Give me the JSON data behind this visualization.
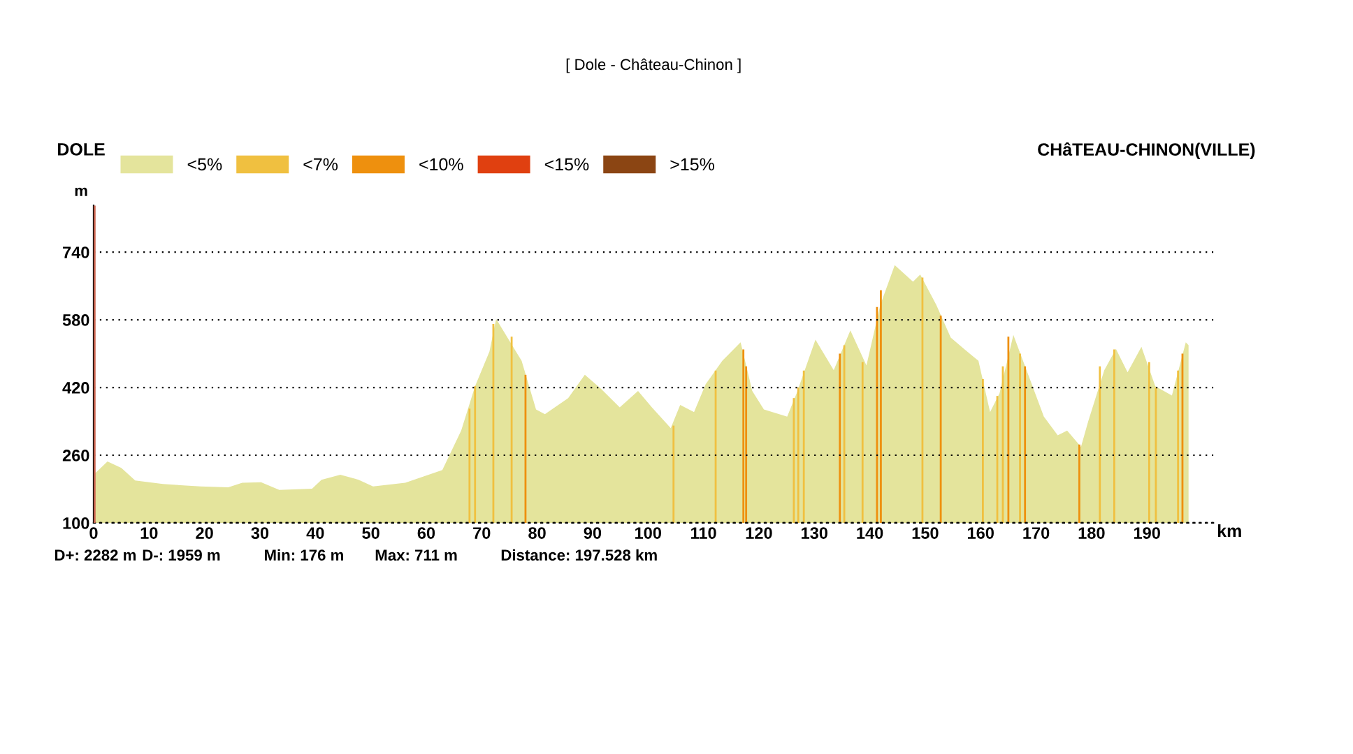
{
  "chart_data": {
    "type": "area",
    "title": "[ Dole - Château-Chinon ]",
    "xlabel": "km",
    "ylabel": "m",
    "annotations": [
      "DOLE",
      "CHâTEAU-CHINON(VILLE)",
      "D+: 2282 m",
      "D-: 1959 m",
      "Min: 176 m",
      "Max: 711 m",
      "Distance: 197.528 km"
    ],
    "series": [
      {
        "name": "<5%",
        "color": "#e4e49c",
        "x": [
          0,
          2.5,
          5,
          7.5,
          12.5,
          19.3,
          24.3,
          26.8,
          30.2,
          33.5,
          39.4,
          41.1,
          44.5,
          47.8,
          50.4,
          56.2,
          59.6,
          62.9,
          66.3,
          68.8,
          71.4,
          72.6,
          77.2,
          79.8,
          81.4,
          85.6,
          88.6,
          91.5,
          94.9,
          98.2,
          100.7,
          104.1,
          105.8,
          108.3,
          110.4,
          113.4,
          116.7,
          118.8,
          120.9,
          125.1,
          126.8,
          130.2,
          133.5,
          136.5,
          139.4,
          141.9,
          144.5,
          147.8,
          149.1,
          152.0,
          154.6,
          157.0,
          159.6,
          161.7,
          163.4,
          165.9,
          168.9,
          171.4,
          173.9,
          175.6,
          178.1,
          179.4,
          182.3,
          184.4,
          186.5,
          189.0,
          191.5,
          194.5,
          197.0,
          197.5
        ],
        "values": [
          214,
          245,
          230,
          200,
          192,
          186,
          184,
          195,
          196,
          178,
          181,
          202,
          214,
          202,
          186,
          195,
          210,
          225,
          318,
          423,
          505,
          582,
          483,
          368,
          357,
          395,
          450,
          417,
          373,
          412,
          373,
          324,
          379,
          362,
          428,
          483,
          527,
          412,
          368,
          351,
          406,
          533,
          461,
          555,
          472,
          615,
          709,
          670,
          687,
          615,
          538,
          511,
          483,
          362,
          406,
          544,
          439,
          351,
          307,
          318,
          280,
          340,
          461,
          511,
          456,
          516,
          423,
          401,
          527,
          520
        ]
      },
      {
        "name": "<7%",
        "color": "#f0c040",
        "type": "bar",
        "x": [
          67.8,
          68.8,
          72.1,
          75.4,
          104.6,
          112.2,
          126.3,
          127.1,
          128.1,
          135.4,
          138.7,
          149.5,
          160.4,
          163.0,
          164.0,
          167.1,
          181.5,
          184.1,
          190.4,
          191.6,
          195.6
        ],
        "values": [
          370,
          423,
          570,
          540,
          330,
          460,
          395,
          420,
          460,
          520,
          480,
          680,
          440,
          400,
          470,
          500,
          470,
          510,
          480,
          420,
          460
        ]
      },
      {
        "name": "<10%",
        "color": "#ee900e",
        "type": "bar",
        "x": [
          77.9,
          117.2,
          117.7,
          134.6,
          141.3,
          142.0,
          152.8,
          165.0,
          168.0,
          177.8,
          196.4
        ],
        "values": [
          450,
          510,
          470,
          500,
          610,
          650,
          590,
          540,
          470,
          285,
          500
        ]
      },
      {
        "name": "<15%",
        "color": "#e04010",
        "type": "bar"
      },
      {
        "name": ">15%",
        "color": "#8b4513",
        "type": "bar"
      }
    ],
    "ref_lines": [
      {
        "axis": "x",
        "value": 0,
        "label": null,
        "color": "#c86450"
      }
    ],
    "xlim": [
      0,
      202
    ],
    "ylim": [
      100,
      850
    ],
    "xticks": [
      0,
      10,
      20,
      30,
      40,
      50,
      60,
      70,
      80,
      90,
      100,
      110,
      120,
      130,
      140,
      150,
      160,
      170,
      180,
      190
    ],
    "yticks": [
      100,
      260,
      420,
      580,
      740
    ],
    "grid": "y",
    "legend": "top left"
  }
}
